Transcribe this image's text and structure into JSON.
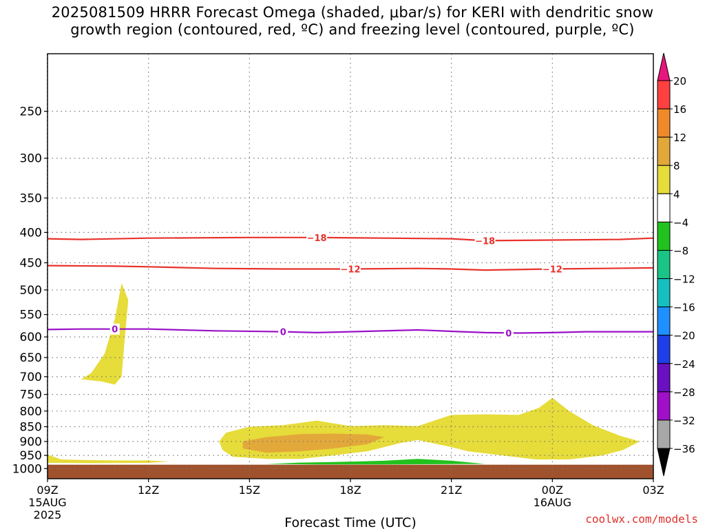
{
  "title": {
    "line1": "2025081509 HRRR Forecast Omega (shaded, μbar/s) for KERI with dendritic snow",
    "line2": "growth region (contoured, red, ºC) and freezing level (contoured, purple, ºC)"
  },
  "credit": "coolwx.com/models",
  "chart_data": {
    "type": "contour",
    "title": "2025081509 HRRR Forecast Omega (shaded, μbar/s) for KERI with dendritic snow growth region (contoured, red, ºC) and freezing level (contoured, purple, ºC)",
    "xlabel": "Forecast Time (UTC)",
    "ylabel": "",
    "x_ticks": [
      {
        "hour": 0,
        "label": "09Z",
        "sub1": "15AUG",
        "sub2": "2025"
      },
      {
        "hour": 3,
        "label": "12Z",
        "sub1": "",
        "sub2": ""
      },
      {
        "hour": 6,
        "label": "15Z",
        "sub1": "",
        "sub2": ""
      },
      {
        "hour": 9,
        "label": "18Z",
        "sub1": "",
        "sub2": ""
      },
      {
        "hour": 12,
        "label": "21Z",
        "sub1": "",
        "sub2": ""
      },
      {
        "hour": 15,
        "label": "00Z",
        "sub1": "16AUG",
        "sub2": ""
      },
      {
        "hour": 18,
        "label": "03Z",
        "sub1": "",
        "sub2": ""
      }
    ],
    "xlim": [
      0,
      18
    ],
    "y_scale": "log",
    "ylim": [
      200,
      1040
    ],
    "y_ticks": [
      250,
      300,
      350,
      400,
      450,
      500,
      550,
      600,
      650,
      700,
      750,
      800,
      850,
      900,
      950,
      1000
    ],
    "grid": true,
    "colorbar": {
      "labels": [
        "20",
        "16",
        "12",
        "8",
        "4",
        "−4",
        "−8",
        "−12",
        "−16",
        "−20",
        "−24",
        "−28",
        "−32",
        "−36"
      ],
      "colors": [
        "#ff4040",
        "#ef8a2b",
        "#e3a83a",
        "#e6dc3a",
        "#ffffff",
        "#22c21e",
        "#19c486",
        "#16c0c0",
        "#1e90ff",
        "#1e3fe8",
        "#6a10c0",
        "#a010c8",
        "#a8a8a8"
      ],
      "top_color": "#e8157d",
      "bottom_color": "#000000"
    },
    "contours": [
      {
        "name": "-18",
        "color": "#e8312a",
        "points": [
          [
            0,
            410
          ],
          [
            1,
            411
          ],
          [
            3,
            409
          ],
          [
            6,
            408
          ],
          [
            8,
            408
          ],
          [
            10,
            409
          ],
          [
            12,
            410
          ],
          [
            13,
            413
          ],
          [
            15,
            412
          ],
          [
            17,
            411
          ],
          [
            18,
            409
          ]
        ],
        "labels": [
          {
            "x": 8.0,
            "text": "−18"
          },
          {
            "x": 13.0,
            "text": "−18"
          }
        ]
      },
      {
        "name": "-12",
        "color": "#e8312a",
        "points": [
          [
            0,
            455
          ],
          [
            2,
            456
          ],
          [
            3,
            457
          ],
          [
            5,
            460
          ],
          [
            7,
            461
          ],
          [
            8,
            461
          ],
          [
            9,
            461
          ],
          [
            11,
            460
          ],
          [
            12,
            461
          ],
          [
            13,
            463
          ],
          [
            15,
            461
          ],
          [
            18,
            459
          ]
        ],
        "labels": [
          {
            "x": 9.0,
            "text": "−12"
          },
          {
            "x": 15.0,
            "text": "−12"
          }
        ]
      },
      {
        "name": "0",
        "color": "#9a10c8",
        "points": [
          [
            0,
            583
          ],
          [
            1,
            582
          ],
          [
            3,
            582
          ],
          [
            5,
            586
          ],
          [
            7,
            588
          ],
          [
            8,
            590
          ],
          [
            9,
            588
          ],
          [
            11,
            584
          ],
          [
            12,
            587
          ],
          [
            13,
            590
          ],
          [
            14,
            591
          ],
          [
            15,
            590
          ],
          [
            16,
            588
          ],
          [
            18,
            588
          ]
        ],
        "labels": [
          {
            "x": 2.0,
            "text": "0"
          },
          {
            "x": 7.0,
            "text": "0"
          },
          {
            "x": 13.7,
            "text": "0"
          }
        ]
      }
    ],
    "shaded_regions": [
      {
        "level": "4-8",
        "color": "#e6dc3a",
        "polygon": [
          [
            1.0,
            707
          ],
          [
            1.3,
            690
          ],
          [
            1.7,
            640
          ],
          [
            2.0,
            560
          ],
          [
            2.2,
            487
          ],
          [
            2.4,
            520
          ],
          [
            2.3,
            600
          ],
          [
            2.2,
            700
          ],
          [
            2.0,
            722
          ],
          [
            1.6,
            713
          ]
        ]
      },
      {
        "level": "4-8",
        "color": "#e6dc3a",
        "polygon": [
          [
            0,
            947
          ],
          [
            0.4,
            965
          ],
          [
            1.0,
            967
          ],
          [
            2.0,
            969
          ],
          [
            3.0,
            969
          ],
          [
            3.6,
            973
          ],
          [
            3.0,
            978
          ],
          [
            1.5,
            979
          ],
          [
            0,
            978
          ]
        ]
      },
      {
        "level": "4-8",
        "color": "#e6dc3a",
        "polygon": [
          [
            5.1,
            900
          ],
          [
            5.3,
            870
          ],
          [
            6.0,
            850
          ],
          [
            7.0,
            845
          ],
          [
            8.0,
            830
          ],
          [
            9.0,
            848
          ],
          [
            10.0,
            845
          ],
          [
            11.0,
            848
          ],
          [
            12.0,
            812
          ],
          [
            13.0,
            810
          ],
          [
            14.0,
            812
          ],
          [
            14.6,
            790
          ],
          [
            15.0,
            760
          ],
          [
            15.5,
            800
          ],
          [
            16.2,
            845
          ],
          [
            17.0,
            880
          ],
          [
            17.6,
            900
          ],
          [
            17.1,
            930
          ],
          [
            16.5,
            950
          ],
          [
            15.5,
            965
          ],
          [
            14.5,
            965
          ],
          [
            13.5,
            950
          ],
          [
            12.5,
            935
          ],
          [
            12.0,
            920
          ],
          [
            11.0,
            895
          ],
          [
            10.5,
            905
          ],
          [
            9.5,
            935
          ],
          [
            8.5,
            950
          ],
          [
            7.5,
            963
          ],
          [
            6.5,
            963
          ],
          [
            5.5,
            955
          ],
          [
            5.2,
            930
          ]
        ]
      },
      {
        "level": "8-12",
        "color": "#e3a83a",
        "polygon": [
          [
            5.8,
            900
          ],
          [
            6.5,
            885
          ],
          [
            7.5,
            875
          ],
          [
            8.5,
            873
          ],
          [
            9.5,
            876
          ],
          [
            10.0,
            885
          ],
          [
            9.5,
            910
          ],
          [
            8.5,
            925
          ],
          [
            7.5,
            935
          ],
          [
            6.5,
            940
          ],
          [
            5.8,
            925
          ]
        ]
      },
      {
        "level": "-4--8",
        "color": "#22c21e",
        "polygon": [
          [
            6.5,
            982
          ],
          [
            7.5,
            977
          ],
          [
            8.5,
            975
          ],
          [
            10.0,
            970
          ],
          [
            11.0,
            963
          ],
          [
            12.0,
            970
          ],
          [
            13.0,
            982
          ],
          [
            10.0,
            984
          ],
          [
            8.0,
            984
          ]
        ]
      }
    ],
    "ground": {
      "from_pressure": 985,
      "color": "#a0522d"
    }
  }
}
